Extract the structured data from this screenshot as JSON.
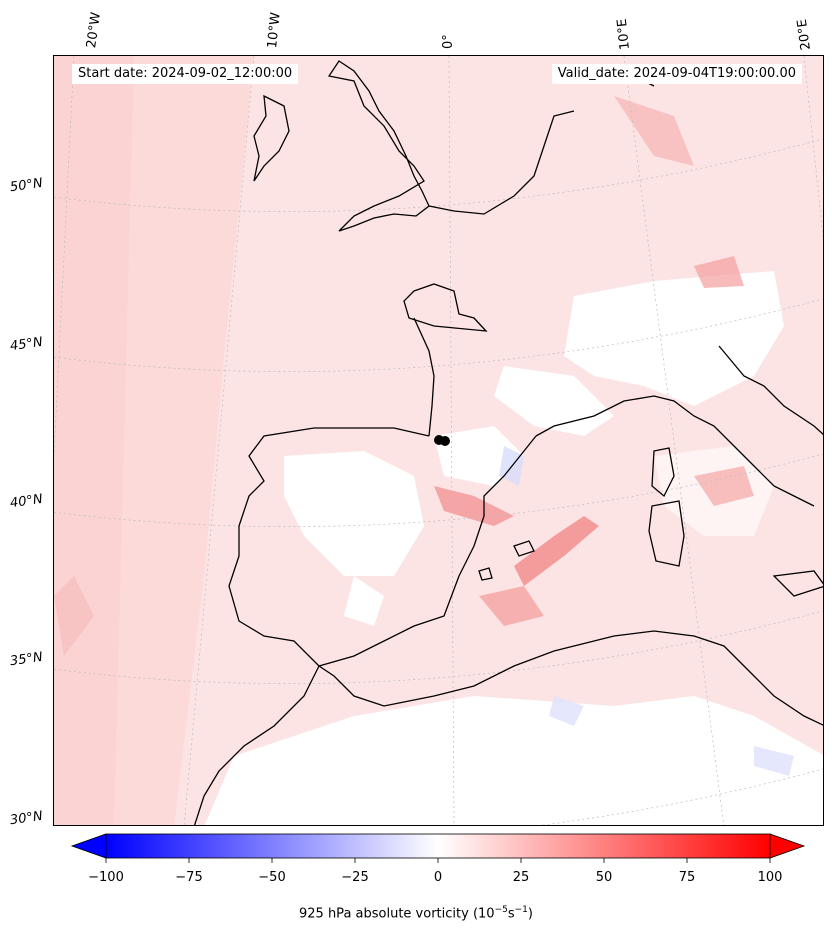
{
  "header": {
    "start_date": "Start date: 2024-09-02_12:00:00",
    "valid_date": "Valid_date: 2024-09-04T19:00:00.00"
  },
  "map": {
    "projection": "conic",
    "region": "Western Europe / Iberian Peninsula / Western Mediterranean",
    "field": "925 hPa absolute vorticity",
    "lon_labels": [
      "20°W",
      "10°W",
      "0°",
      "10°E",
      "20°E"
    ],
    "lat_labels": [
      "50°N",
      "45°N",
      "40°N",
      "35°N",
      "30°N"
    ],
    "marker": "storm center near 42°N, 0°"
  },
  "colorbar": {
    "ticks": [
      "−100",
      "−75",
      "−50",
      "−25",
      "0",
      "25",
      "50",
      "75",
      "100"
    ],
    "label_main": "925 hPa absolute vorticity (10",
    "label_sup1": "−5",
    "label_mid": "s",
    "label_sup2": "−1",
    "label_end": ")",
    "min_color": "#0000ff",
    "mid_color": "#ffffff",
    "max_color": "#ff0000",
    "extend": "both"
  }
}
